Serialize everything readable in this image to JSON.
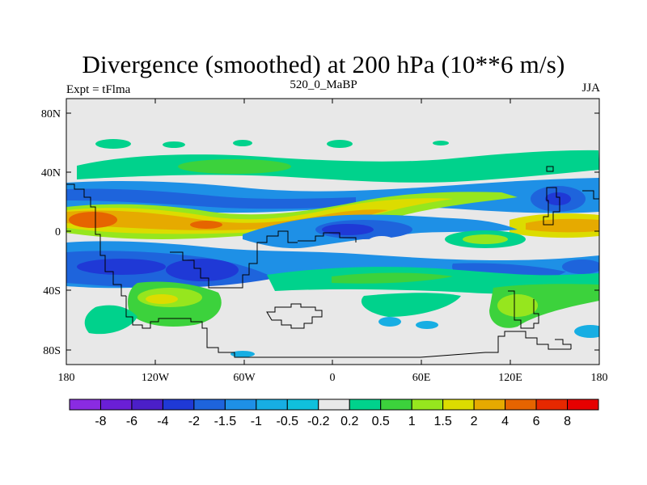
{
  "title": "Divergence (smoothed) at 200 hPa (10**6 m/s)",
  "subtitle_left": "Expt = tFlma",
  "subtitle_center": "520_0_MaBP",
  "subtitle_right": "JJA",
  "map": {
    "lon_ticks": [
      "180",
      "120W",
      "60W",
      "0",
      "60E",
      "120E",
      "180"
    ],
    "lat_ticks": [
      "80N",
      "40N",
      "0",
      "40S",
      "80S"
    ],
    "lon_range": [
      -180,
      180
    ],
    "lat_range": [
      -90,
      90
    ]
  },
  "colorbar": {
    "labels": [
      "-8",
      "-6",
      "-4",
      "-2",
      "-1.5",
      "-1",
      "-0.5",
      "-0.2",
      "0.2",
      "0.5",
      "1",
      "1.5",
      "2",
      "4",
      "6",
      "8"
    ],
    "colors": [
      "#8a2be2",
      "#6a1fd6",
      "#4b1fc8",
      "#1f39d6",
      "#1e64dc",
      "#1e90e6",
      "#17aee3",
      "#10c0dc",
      "#e8e8e8",
      "#00d28c",
      "#3cd23c",
      "#96e61e",
      "#dcdc00",
      "#e6aa00",
      "#e66400",
      "#e62800",
      "#e60000"
    ]
  }
}
